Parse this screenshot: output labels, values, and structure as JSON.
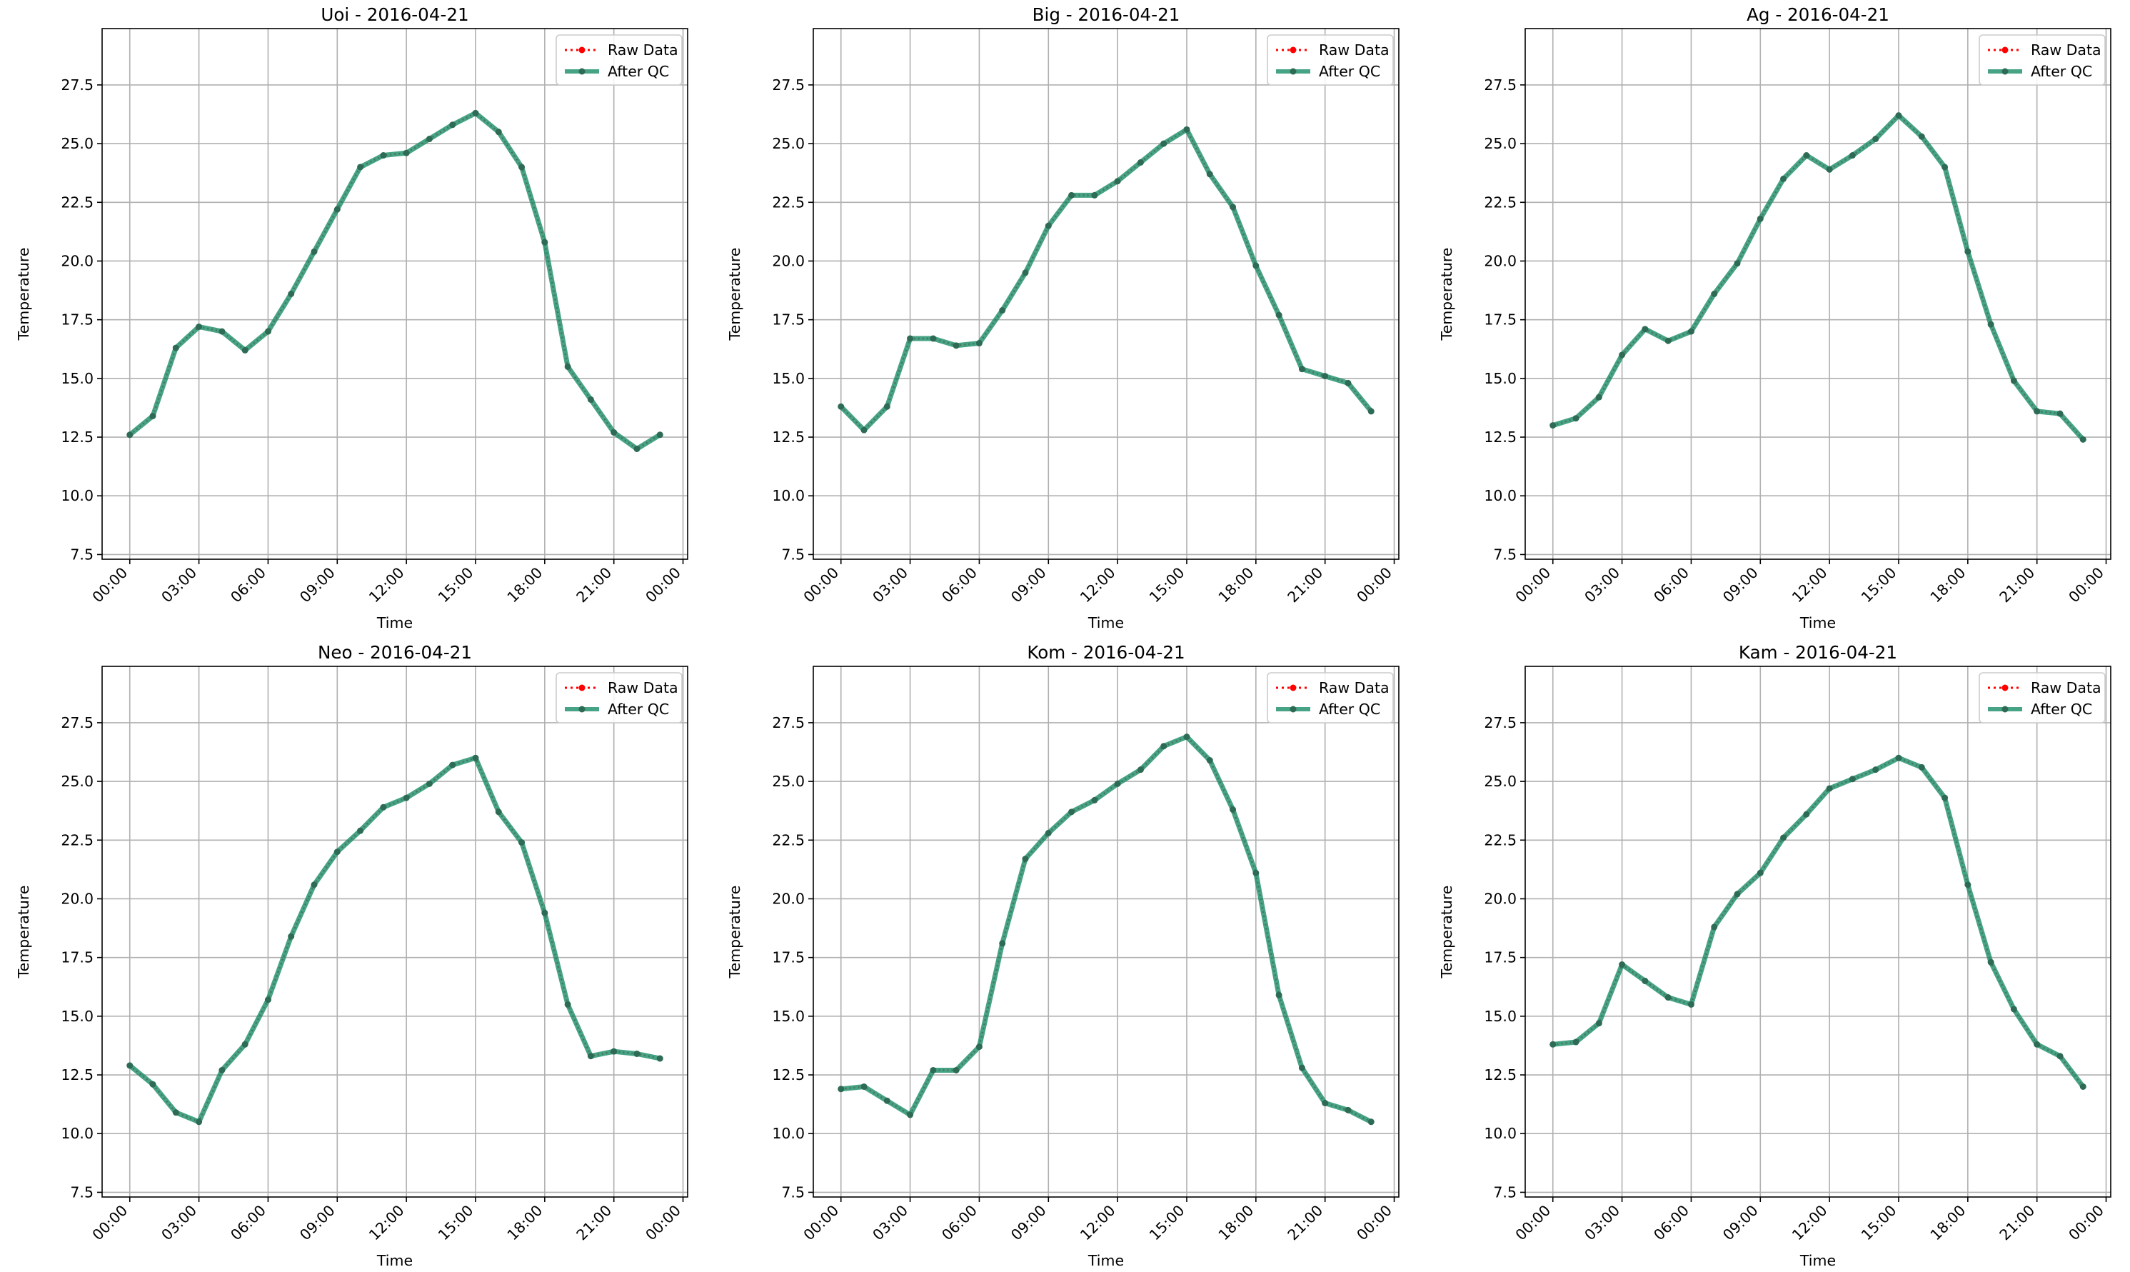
{
  "figure": {
    "colors": {
      "raw": "#ff0000",
      "qc": "#1d8f6a",
      "qc_marker": "#2e6b55",
      "grid": "#b0b0b0"
    },
    "legend": {
      "placement": "top-right",
      "raw_label": "Raw Data",
      "qc_label": "After QC"
    }
  },
  "chart_data": [
    {
      "type": "line",
      "title": "Uoi - 2016-04-21",
      "xlabel": "Time",
      "ylabel": "Temperature",
      "xticks": [
        "00:00",
        "03:00",
        "06:00",
        "09:00",
        "12:00",
        "15:00",
        "18:00",
        "21:00",
        "00:00"
      ],
      "yticks": [
        "7.5",
        "10.0",
        "12.5",
        "15.0",
        "17.5",
        "20.0",
        "22.5",
        "25.0",
        "27.5"
      ],
      "xlim": [
        -1.2,
        24.2
      ],
      "ylim": [
        7.3,
        29.9
      ],
      "grid": true,
      "x": [
        0,
        1,
        2,
        3,
        4,
        5,
        6,
        7,
        8,
        9,
        10,
        11,
        12,
        13,
        14,
        15,
        16,
        17,
        18,
        19,
        20,
        21,
        22,
        23
      ],
      "series": [
        {
          "name": "Raw Data",
          "values": [
            12.6,
            13.4,
            16.3,
            17.2,
            17.0,
            16.2,
            17.0,
            18.6,
            20.4,
            22.2,
            24.0,
            24.5,
            24.6,
            25.2,
            25.8,
            26.3,
            25.5,
            24.0,
            20.8,
            15.5,
            14.1,
            12.7,
            12.0,
            12.6
          ]
        },
        {
          "name": "After QC",
          "values": [
            12.6,
            13.4,
            16.3,
            17.2,
            17.0,
            16.2,
            17.0,
            18.6,
            20.4,
            22.2,
            24.0,
            24.5,
            24.6,
            25.2,
            25.8,
            26.3,
            25.5,
            24.0,
            20.8,
            15.5,
            14.1,
            12.7,
            12.0,
            12.6
          ]
        }
      ]
    },
    {
      "type": "line",
      "title": "Big - 2016-04-21",
      "xlabel": "Time",
      "ylabel": "Temperature",
      "xticks": [
        "00:00",
        "03:00",
        "06:00",
        "09:00",
        "12:00",
        "15:00",
        "18:00",
        "21:00",
        "00:00"
      ],
      "yticks": [
        "7.5",
        "10.0",
        "12.5",
        "15.0",
        "17.5",
        "20.0",
        "22.5",
        "25.0",
        "27.5"
      ],
      "xlim": [
        -1.2,
        24.2
      ],
      "ylim": [
        7.3,
        29.9
      ],
      "grid": true,
      "x": [
        0,
        1,
        2,
        3,
        4,
        5,
        6,
        7,
        8,
        9,
        10,
        11,
        12,
        13,
        14,
        15,
        16,
        17,
        18,
        19,
        20,
        21,
        22,
        23
      ],
      "series": [
        {
          "name": "Raw Data",
          "values": [
            13.8,
            12.8,
            13.8,
            16.7,
            16.7,
            16.4,
            16.5,
            17.9,
            19.5,
            21.5,
            22.8,
            22.8,
            23.4,
            24.2,
            25.0,
            25.6,
            23.7,
            22.3,
            19.8,
            17.7,
            15.4,
            15.1,
            14.8,
            13.6
          ]
        },
        {
          "name": "After QC",
          "values": [
            13.8,
            12.8,
            13.8,
            16.7,
            16.7,
            16.4,
            16.5,
            17.9,
            19.5,
            21.5,
            22.8,
            22.8,
            23.4,
            24.2,
            25.0,
            25.6,
            23.7,
            22.3,
            19.8,
            17.7,
            15.4,
            15.1,
            14.8,
            13.6
          ]
        }
      ]
    },
    {
      "type": "line",
      "title": "Ag - 2016-04-21",
      "xlabel": "Time",
      "ylabel": "Temperature",
      "xticks": [
        "00:00",
        "03:00",
        "06:00",
        "09:00",
        "12:00",
        "15:00",
        "18:00",
        "21:00",
        "00:00"
      ],
      "yticks": [
        "7.5",
        "10.0",
        "12.5",
        "15.0",
        "17.5",
        "20.0",
        "22.5",
        "25.0",
        "27.5"
      ],
      "xlim": [
        -1.2,
        24.2
      ],
      "ylim": [
        7.3,
        29.9
      ],
      "grid": true,
      "x": [
        0,
        1,
        2,
        3,
        4,
        5,
        6,
        7,
        8,
        9,
        10,
        11,
        12,
        13,
        14,
        15,
        16,
        17,
        18,
        19,
        20,
        21,
        22,
        23
      ],
      "series": [
        {
          "name": "Raw Data",
          "values": [
            13.0,
            13.3,
            14.2,
            16.0,
            17.1,
            16.6,
            17.0,
            18.6,
            19.9,
            21.8,
            23.5,
            24.5,
            23.9,
            24.5,
            25.2,
            26.2,
            25.3,
            24.0,
            20.4,
            17.3,
            14.9,
            13.6,
            13.5,
            12.4
          ]
        },
        {
          "name": "After QC",
          "values": [
            13.0,
            13.3,
            14.2,
            16.0,
            17.1,
            16.6,
            17.0,
            18.6,
            19.9,
            21.8,
            23.5,
            24.5,
            23.9,
            24.5,
            25.2,
            26.2,
            25.3,
            24.0,
            20.4,
            17.3,
            14.9,
            13.6,
            13.5,
            12.4
          ]
        }
      ]
    },
    {
      "type": "line",
      "title": "Neo - 2016-04-21",
      "xlabel": "Time",
      "ylabel": "Temperature",
      "xticks": [
        "00:00",
        "03:00",
        "06:00",
        "09:00",
        "12:00",
        "15:00",
        "18:00",
        "21:00",
        "00:00"
      ],
      "yticks": [
        "7.5",
        "10.0",
        "12.5",
        "15.0",
        "17.5",
        "20.0",
        "22.5",
        "25.0",
        "27.5"
      ],
      "xlim": [
        -1.2,
        24.2
      ],
      "ylim": [
        7.3,
        29.9
      ],
      "grid": true,
      "x": [
        0,
        1,
        2,
        3,
        4,
        5,
        6,
        7,
        8,
        9,
        10,
        11,
        12,
        13,
        14,
        15,
        16,
        17,
        18,
        19,
        20,
        21,
        22,
        23
      ],
      "series": [
        {
          "name": "Raw Data",
          "values": [
            12.9,
            12.1,
            10.9,
            10.5,
            12.7,
            13.8,
            15.7,
            18.4,
            20.6,
            22.0,
            22.9,
            23.9,
            24.3,
            24.9,
            25.7,
            26.0,
            23.7,
            22.4,
            19.4,
            15.5,
            13.3,
            13.5,
            13.4,
            13.2
          ]
        },
        {
          "name": "After QC",
          "values": [
            12.9,
            12.1,
            10.9,
            10.5,
            12.7,
            13.8,
            15.7,
            18.4,
            20.6,
            22.0,
            22.9,
            23.9,
            24.3,
            24.9,
            25.7,
            26.0,
            23.7,
            22.4,
            19.4,
            15.5,
            13.3,
            13.5,
            13.4,
            13.2
          ]
        }
      ]
    },
    {
      "type": "line",
      "title": "Kom - 2016-04-21",
      "xlabel": "Time",
      "ylabel": "Temperature",
      "xticks": [
        "00:00",
        "03:00",
        "06:00",
        "09:00",
        "12:00",
        "15:00",
        "18:00",
        "21:00",
        "00:00"
      ],
      "yticks": [
        "7.5",
        "10.0",
        "12.5",
        "15.0",
        "17.5",
        "20.0",
        "22.5",
        "25.0",
        "27.5"
      ],
      "xlim": [
        -1.2,
        24.2
      ],
      "ylim": [
        7.3,
        29.9
      ],
      "grid": true,
      "x": [
        0,
        1,
        2,
        3,
        4,
        5,
        6,
        7,
        8,
        9,
        10,
        11,
        12,
        13,
        14,
        15,
        16,
        17,
        18,
        19,
        20,
        21,
        22,
        23
      ],
      "series": [
        {
          "name": "Raw Data",
          "values": [
            11.9,
            12.0,
            11.4,
            10.8,
            12.7,
            12.7,
            13.7,
            18.1,
            21.7,
            22.8,
            23.7,
            24.2,
            24.9,
            25.5,
            26.5,
            26.9,
            25.9,
            23.8,
            21.1,
            15.9,
            12.8,
            11.3,
            11.0,
            10.5
          ]
        },
        {
          "name": "After QC",
          "values": [
            11.9,
            12.0,
            11.4,
            10.8,
            12.7,
            12.7,
            13.7,
            18.1,
            21.7,
            22.8,
            23.7,
            24.2,
            24.9,
            25.5,
            26.5,
            26.9,
            25.9,
            23.8,
            21.1,
            15.9,
            12.8,
            11.3,
            11.0,
            10.5
          ]
        }
      ]
    },
    {
      "type": "line",
      "title": "Kam - 2016-04-21",
      "xlabel": "Time",
      "ylabel": "Temperature",
      "xticks": [
        "00:00",
        "03:00",
        "06:00",
        "09:00",
        "12:00",
        "15:00",
        "18:00",
        "21:00",
        "00:00"
      ],
      "yticks": [
        "7.5",
        "10.0",
        "12.5",
        "15.0",
        "17.5",
        "20.0",
        "22.5",
        "25.0",
        "27.5"
      ],
      "xlim": [
        -1.2,
        24.2
      ],
      "ylim": [
        7.3,
        29.9
      ],
      "grid": true,
      "x": [
        0,
        1,
        2,
        3,
        4,
        5,
        6,
        7,
        8,
        9,
        10,
        11,
        12,
        13,
        14,
        15,
        16,
        17,
        18,
        19,
        20,
        21,
        22,
        23
      ],
      "series": [
        {
          "name": "Raw Data",
          "values": [
            13.8,
            13.9,
            14.7,
            17.2,
            16.5,
            15.8,
            15.5,
            18.8,
            20.2,
            21.1,
            22.6,
            23.6,
            24.7,
            25.1,
            25.5,
            26.0,
            25.6,
            24.3,
            20.6,
            17.3,
            15.3,
            13.8,
            13.3,
            12.0
          ]
        },
        {
          "name": "After QC",
          "values": [
            13.8,
            13.9,
            14.7,
            17.2,
            16.5,
            15.8,
            15.5,
            18.8,
            20.2,
            21.1,
            22.6,
            23.6,
            24.7,
            25.1,
            25.5,
            26.0,
            25.6,
            24.3,
            20.6,
            17.3,
            15.3,
            13.8,
            13.3,
            12.0
          ]
        }
      ]
    }
  ]
}
